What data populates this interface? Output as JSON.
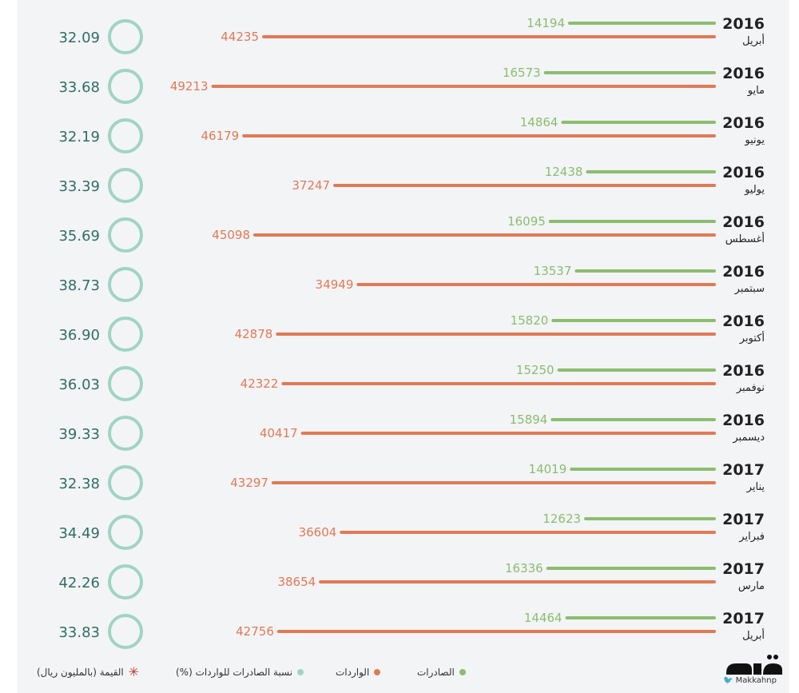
{
  "chart_data": {
    "type": "bar",
    "colors": {
      "exports": "#8bbd6e",
      "imports": "#e07a56",
      "ratio_circle": "#9fd4c3",
      "ratio_text": "#2f6e64",
      "year_text": "#222222",
      "month_text": "#222222"
    },
    "rows": [
      {
        "year": "2016",
        "month": "أبريل",
        "exports": 14194,
        "imports": 44235,
        "ratio": "32.09"
      },
      {
        "year": "2016",
        "month": "مايو",
        "exports": 16573,
        "imports": 49213,
        "ratio": "33.68"
      },
      {
        "year": "2016",
        "month": "يونيو",
        "exports": 14864,
        "imports": 46179,
        "ratio": "32.19"
      },
      {
        "year": "2016",
        "month": "يوليو",
        "exports": 12438,
        "imports": 37247,
        "ratio": "33.39"
      },
      {
        "year": "2016",
        "month": "أغسطس",
        "exports": 16095,
        "imports": 45098,
        "ratio": "35.69"
      },
      {
        "year": "2016",
        "month": "سبتمبر",
        "exports": 13537,
        "imports": 34949,
        "ratio": "38.73"
      },
      {
        "year": "2016",
        "month": "أكتوبر",
        "exports": 15820,
        "imports": 42878,
        "ratio": "36.90"
      },
      {
        "year": "2016",
        "month": "نوفمبر",
        "exports": 15250,
        "imports": 42322,
        "ratio": "36.03"
      },
      {
        "year": "2016",
        "month": "ديسمبر",
        "exports": 15894,
        "imports": 40417,
        "ratio": "39.33"
      },
      {
        "year": "2017",
        "month": "يناير",
        "exports": 14019,
        "imports": 43297,
        "ratio": "32.38"
      },
      {
        "year": "2017",
        "month": "فبراير",
        "exports": 12623,
        "imports": 36604,
        "ratio": "34.49"
      },
      {
        "year": "2017",
        "month": "مارس",
        "exports": 16336,
        "imports": 38654,
        "ratio": "42.26"
      },
      {
        "year": "2017",
        "month": "أبريل",
        "exports": 14464,
        "imports": 42756,
        "ratio": "33.83"
      }
    ]
  },
  "legend": {
    "exports": "الصادرات",
    "imports": "الواردات",
    "ratio": "نسبة الصادرات للواردات (%)",
    "value": "القيمة (بالمليون ريال)"
  },
  "logo": {
    "handle": "Makkahnp",
    "icon": "twitter-bird-icon"
  }
}
